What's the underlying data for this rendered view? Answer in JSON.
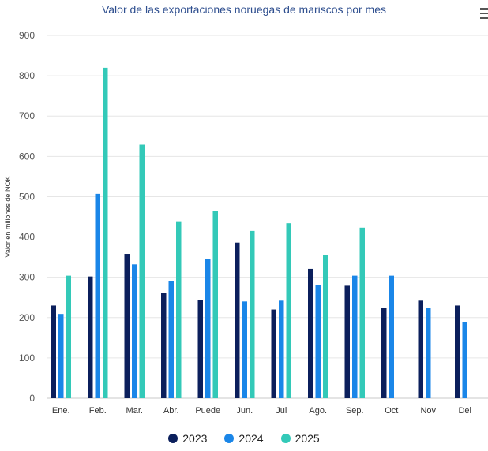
{
  "chart_data": {
    "type": "bar",
    "title": "Valor de las exportaciones noruegas de mariscos por mes",
    "ylabel": "Valor en millones de NOK",
    "xlabel": "",
    "ylim": [
      0,
      900
    ],
    "yticks": [
      0,
      100,
      200,
      300,
      400,
      500,
      600,
      700,
      800,
      900
    ],
    "grid": true,
    "legend_position": "bottom",
    "categories": [
      "Ene.",
      "Feb.",
      "Mar.",
      "Abr.",
      "Puede",
      "Jun.",
      "Jul",
      "Ago.",
      "Sep.",
      "Oct",
      "Nov",
      "Del"
    ],
    "series": [
      {
        "name": "2023",
        "color": "#0b1f5c",
        "values": [
          230,
          302,
          358,
          261,
          244,
          386,
          220,
          321,
          279,
          224,
          242,
          230
        ]
      },
      {
        "name": "2024",
        "color": "#1a86e8",
        "values": [
          209,
          507,
          332,
          291,
          345,
          240,
          242,
          281,
          304,
          304,
          225,
          188
        ]
      },
      {
        "name": "2025",
        "color": "#33c9b8",
        "values": [
          304,
          820,
          629,
          439,
          465,
          415,
          434,
          355,
          423,
          null,
          null,
          null
        ]
      }
    ]
  },
  "menu_icon": "hamburger-menu-icon"
}
